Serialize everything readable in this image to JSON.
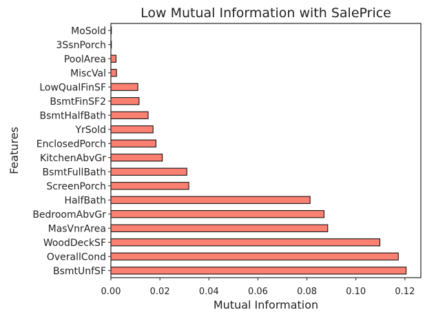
{
  "chart_data": {
    "type": "bar",
    "orientation": "horizontal",
    "title": "Low Mutual Information with SalePrice",
    "xlabel": "Mutual Information",
    "ylabel": "Features",
    "categories": [
      "BsmtUnfSF",
      "OverallCond",
      "WoodDeckSF",
      "MasVnrArea",
      "BedroomAbvGr",
      "HalfBath",
      "ScreenPorch",
      "BsmtFullBath",
      "KitchenAbvGr",
      "EnclosedPorch",
      "YrSold",
      "BsmtHalfBath",
      "BsmtFinSF2",
      "LowQualFinSF",
      "MiscVal",
      "PoolArea",
      "3SsnPorch",
      "MoSold"
    ],
    "values": [
      0.1205,
      0.1173,
      0.1098,
      0.0885,
      0.087,
      0.0813,
      0.0318,
      0.031,
      0.021,
      0.0184,
      0.0172,
      0.0152,
      0.0115,
      0.011,
      0.0023,
      0.0021,
      0.0002,
      0.0002
    ],
    "xticks": [
      "0.00",
      "0.02",
      "0.04",
      "0.06",
      "0.08",
      "0.10",
      "0.12"
    ],
    "xlim": [
      0,
      0.1265
    ],
    "bar_color": "#fa8072",
    "bar_edge_color": "#000000",
    "grid": false
  }
}
